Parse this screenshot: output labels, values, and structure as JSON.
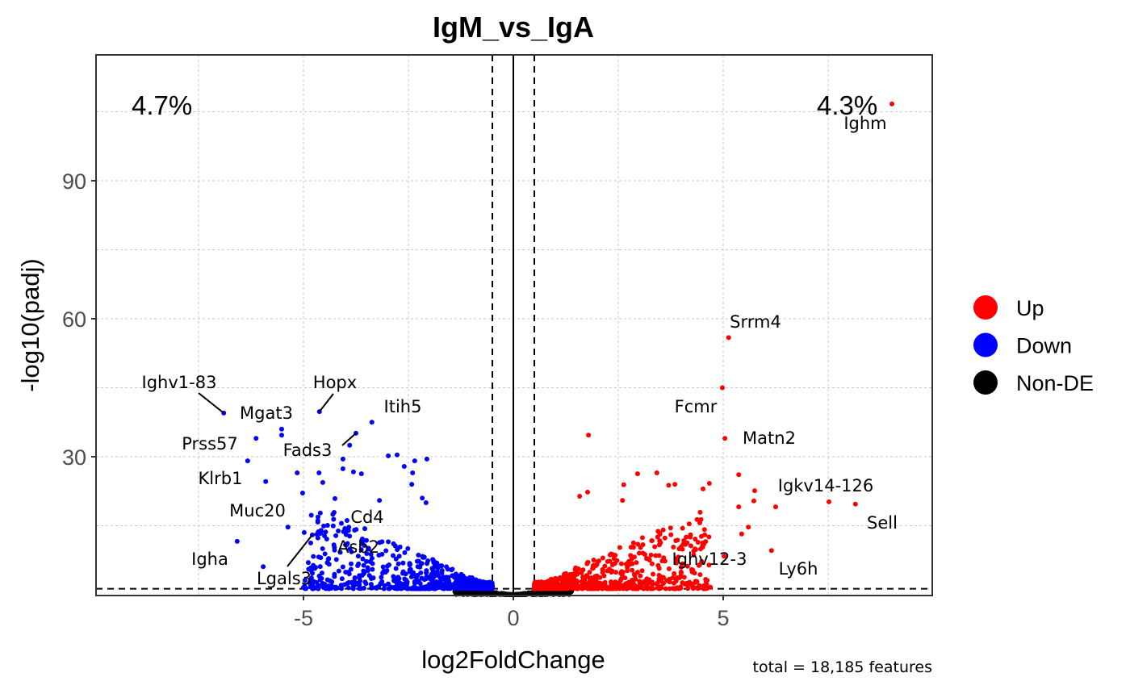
{
  "chart_data": {
    "type": "scatter",
    "title": "IgM_vs_IgA",
    "xlabel": "log2FoldChange",
    "ylabel": "-log10(padj)",
    "xlim": [
      -10,
      10
    ],
    "ylim": [
      0,
      117
    ],
    "x_ticks": [
      -5,
      0,
      5
    ],
    "y_ticks": [
      30,
      60,
      90
    ],
    "x_tick_labels": [
      "-5",
      "0",
      "5"
    ],
    "y_tick_labels": [
      "30",
      "60",
      "90"
    ],
    "grid": true,
    "thresholds": {
      "log2fc": 0.5,
      "neg_log10_padj": 1.3
    },
    "percent_down": "4.7%",
    "percent_up": "4.3%",
    "caption": "total = 18,185 features",
    "legend": {
      "placement": "right",
      "title": "",
      "entries": [
        {
          "label": "Up",
          "color": "#ff0000"
        },
        {
          "label": "Down",
          "color": "#0000ff"
        },
        {
          "label": "Non-DE",
          "color": "#000000"
        }
      ]
    },
    "labeled_genes": [
      {
        "gene": "Ighm",
        "x": 9.02,
        "y": 106.7,
        "group": "Up"
      },
      {
        "gene": "Srrm4",
        "x": 5.13,
        "y": 55.9,
        "group": "Up"
      },
      {
        "gene": "Fcmr",
        "x": 4.98,
        "y": 45.0,
        "group": "Up"
      },
      {
        "gene": "Matn2",
        "x": 5.04,
        "y": 34.0,
        "group": "Up"
      },
      {
        "gene": "Igkv14-126",
        "x": 5.75,
        "y": 22.6,
        "group": "Up"
      },
      {
        "gene": "Sell",
        "x": 8.15,
        "y": 19.7,
        "group": "Up"
      },
      {
        "gene": "Ly6h",
        "x": 6.15,
        "y": 9.6,
        "group": "Up"
      },
      {
        "gene": "Ighv12-3",
        "x": 5.02,
        "y": 8.4,
        "group": "Up"
      },
      {
        "gene": "Ighv1-83",
        "x": -6.9,
        "y": 39.5,
        "group": "Down"
      },
      {
        "gene": "Hopx",
        "x": -4.62,
        "y": 39.8,
        "group": "Down"
      },
      {
        "gene": "Itih5",
        "x": -3.37,
        "y": 37.5,
        "group": "Down"
      },
      {
        "gene": "Mgat3",
        "x": -5.52,
        "y": 36.0,
        "group": "Down"
      },
      {
        "gene": "Fads3",
        "x": -3.75,
        "y": 35.1,
        "group": "Down"
      },
      {
        "gene": "Prss57",
        "x": -6.13,
        "y": 34.0,
        "group": "Down"
      },
      {
        "gene": "Klrb1",
        "x": -5.9,
        "y": 24.6,
        "group": "Down"
      },
      {
        "gene": "Muc20",
        "x": -5.37,
        "y": 14.7,
        "group": "Down"
      },
      {
        "gene": "Cd4",
        "x": -3.92,
        "y": 14.7,
        "group": "Down"
      },
      {
        "gene": "Igha",
        "x": -6.58,
        "y": 11.6,
        "group": "Down"
      },
      {
        "gene": "Lgals3",
        "x": -4.79,
        "y": 13.0,
        "group": "Down"
      },
      {
        "gene": "Asb2",
        "x": -3.5,
        "y": 11.8,
        "group": "Down"
      }
    ],
    "other_points": [
      {
        "x": 1.79,
        "y": 34.7,
        "group": "Up"
      },
      {
        "x": 5.37,
        "y": 26.1,
        "group": "Up"
      },
      {
        "x": 5.73,
        "y": 20.4,
        "group": "Up"
      },
      {
        "x": 6.25,
        "y": 19.1,
        "group": "Up"
      },
      {
        "x": 7.52,
        "y": 20.2,
        "group": "Up"
      },
      {
        "x": 5.37,
        "y": 19.1,
        "group": "Up"
      },
      {
        "x": 5.6,
        "y": 14.7,
        "group": "Up"
      },
      {
        "x": 5.44,
        "y": 13.2,
        "group": "Up"
      },
      {
        "x": 3.42,
        "y": 26.5,
        "group": "Up"
      },
      {
        "x": 2.96,
        "y": 26.3,
        "group": "Up"
      },
      {
        "x": 4.67,
        "y": 24.2,
        "group": "Up"
      },
      {
        "x": 4.52,
        "y": 23.0,
        "group": "Up"
      },
      {
        "x": 3.85,
        "y": 24.0,
        "group": "Up"
      },
      {
        "x": 1.58,
        "y": 21.4,
        "group": "Up"
      },
      {
        "x": 1.77,
        "y": 22.3,
        "group": "Up"
      },
      {
        "x": 2.63,
        "y": 23.9,
        "group": "Up"
      },
      {
        "x": 3.7,
        "y": 23.8,
        "group": "Up"
      },
      {
        "x": 2.6,
        "y": 20.5,
        "group": "Up"
      },
      {
        "x": -5.52,
        "y": 34.7,
        "group": "Down"
      },
      {
        "x": -6.33,
        "y": 29.1,
        "group": "Down"
      },
      {
        "x": -3.9,
        "y": 32.5,
        "group": "Down"
      },
      {
        "x": -4.06,
        "y": 29.5,
        "group": "Down"
      },
      {
        "x": -5.15,
        "y": 26.5,
        "group": "Down"
      },
      {
        "x": -4.63,
        "y": 26.5,
        "group": "Down"
      },
      {
        "x": -4.54,
        "y": 24.4,
        "group": "Down"
      },
      {
        "x": -5.02,
        "y": 22.1,
        "group": "Down"
      },
      {
        "x": -2.98,
        "y": 30.2,
        "group": "Down"
      },
      {
        "x": -2.77,
        "y": 30.4,
        "group": "Down"
      },
      {
        "x": -2.35,
        "y": 29.1,
        "group": "Down"
      },
      {
        "x": -2.06,
        "y": 29.5,
        "group": "Down"
      },
      {
        "x": -2.6,
        "y": 27.9,
        "group": "Down"
      },
      {
        "x": -2.4,
        "y": 26.5,
        "group": "Down"
      },
      {
        "x": -2.42,
        "y": 24.0,
        "group": "Down"
      },
      {
        "x": -4.06,
        "y": 27.4,
        "group": "Down"
      },
      {
        "x": -3.81,
        "y": 26.7,
        "group": "Down"
      },
      {
        "x": -3.62,
        "y": 26.3,
        "group": "Down"
      },
      {
        "x": -5.96,
        "y": 6.1,
        "group": "Down"
      },
      {
        "x": -3.19,
        "y": 20.5,
        "group": "Down"
      },
      {
        "x": -4.25,
        "y": 20.9,
        "group": "Down"
      },
      {
        "x": -4.27,
        "y": 17.9,
        "group": "Down"
      },
      {
        "x": -2.17,
        "y": 21.0,
        "group": "Down"
      },
      {
        "x": -2.08,
        "y": 20.0,
        "group": "Down"
      },
      {
        "x": -4.6,
        "y": 13.3,
        "group": "Down"
      },
      {
        "x": -4.5,
        "y": 12.8,
        "group": "Down"
      }
    ],
    "cloud_counts": {
      "Up": 700,
      "Down": 700,
      "Non-DE": 500
    }
  }
}
